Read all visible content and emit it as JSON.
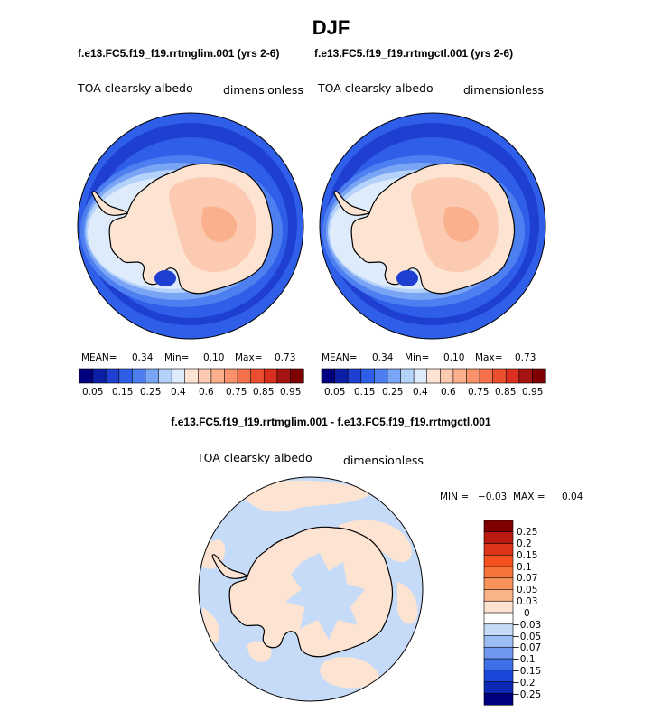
{
  "figure": {
    "season": "DJF"
  },
  "panels": [
    {
      "id": "ctl_lim",
      "case_title": "f.e13.FC5.f19_f19.rrtmglim.001 (yrs 2-6)",
      "variable": "TOA clearsky albedo",
      "units": "dimensionless",
      "stats": {
        "mean_label": "MEAN=",
        "mean": "0.34",
        "min_label": "Min=",
        "min": "0.10",
        "max_label": "Max=",
        "max": "0.73"
      }
    },
    {
      "id": "ctl",
      "case_title": "f.e13.FC5.f19_f19.rrtmgctl.001 (yrs 2-6)",
      "variable": "TOA clearsky albedo",
      "units": "dimensionless",
      "stats": {
        "mean_label": "MEAN=",
        "mean": "0.34",
        "min_label": "Min=",
        "min": "0.10",
        "max_label": "Max=",
        "max": "0.73"
      }
    }
  ],
  "abs_colorbar": {
    "colors": [
      "#00007f",
      "#0a1fa6",
      "#1f3fd0",
      "#2f5ee8",
      "#4d7ff0",
      "#7aa5f5",
      "#b5d2fa",
      "#deebfb",
      "#fde3d2",
      "#fccab0",
      "#fbb08d",
      "#f9916a",
      "#f3714c",
      "#ec4f2f",
      "#d8301c",
      "#a51410",
      "#7f0000"
    ],
    "tick_labels": [
      "0.05",
      "0.15",
      "0.25",
      "0.4",
      "0.6",
      "0.75",
      "0.85",
      "0.95"
    ]
  },
  "diff_panel": {
    "title": "f.e13.FC5.f19_f19.rrtmglim.001 - f.e13.FC5.f19_f19.rrtmgctl.001",
    "variable": "TOA clearsky albedo",
    "units": "dimensionless",
    "stats": {
      "min_label": "MIN =",
      "min": "−0.03",
      "max_label": "MAX =",
      "max": "0.04"
    }
  },
  "diff_colorbar": {
    "colors": [
      "#7f0000",
      "#bb1a10",
      "#e03418",
      "#f4511f",
      "#f6733a",
      "#f8935a",
      "#fab287",
      "#fde3d2",
      "#ffffff",
      "#c6dbf7",
      "#9cbdf3",
      "#6f98ee",
      "#3f6fe6",
      "#1a47d8",
      "#0a2ab3",
      "#00007f"
    ],
    "tick_labels": [
      "0.25",
      "0.2",
      "0.15",
      "0.1",
      "0.07",
      "0.05",
      "0.03",
      "0",
      "−0.03",
      "−0.05",
      "−0.07",
      "−0.1",
      "−0.15",
      "−0.2",
      "−0.25"
    ]
  }
}
